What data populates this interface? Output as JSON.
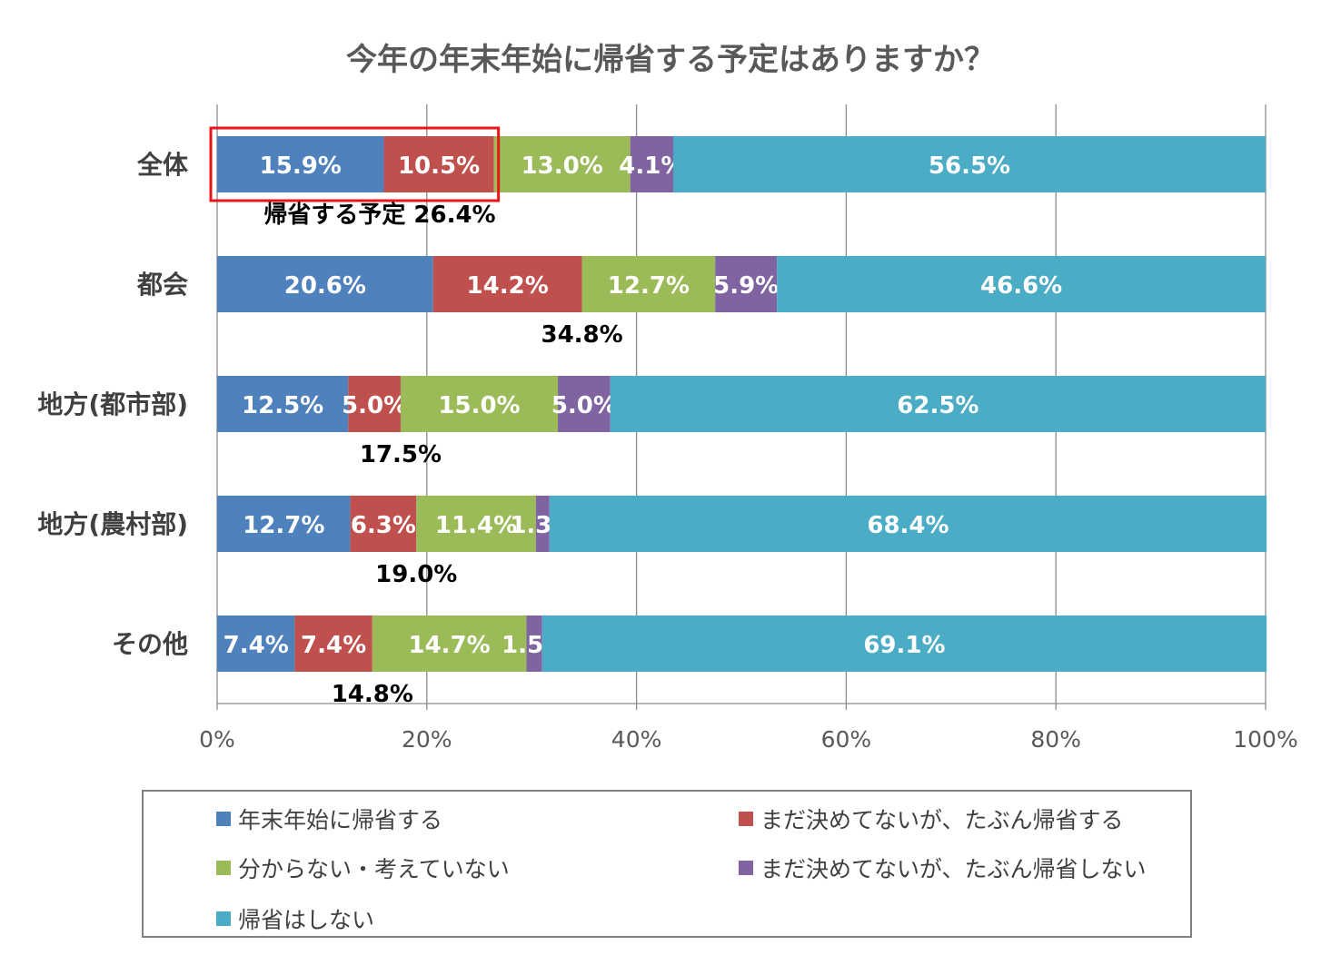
{
  "title": "今年の年末年始に帰省する予定はありますか？",
  "colors": [
    "#4F81BD",
    "#C0504D",
    "#9BBB59",
    "#8064A2",
    "#4BACC6"
  ],
  "chart_data": {
    "type": "bar",
    "orientation": "horizontal",
    "stacked": true,
    "title": "今年の年末年始に帰省する予定はありますか？",
    "categories": [
      "全体",
      "都会",
      "地方(都市部)",
      "地方(農村部)",
      "その他"
    ],
    "series": [
      {
        "name": "年末年始に帰省する",
        "values": [
          15.9,
          20.6,
          12.5,
          12.7,
          7.4
        ]
      },
      {
        "name": "まだ決めてないが、たぶん帰省する",
        "values": [
          10.5,
          14.2,
          5.0,
          6.3,
          7.4
        ]
      },
      {
        "name": "分からない・考えていない",
        "values": [
          13.0,
          12.7,
          15.0,
          11.4,
          14.7
        ]
      },
      {
        "name": "まだ決めてないが、たぶん帰省しない",
        "values": [
          4.1,
          5.9,
          5.0,
          1.3,
          1.5
        ]
      },
      {
        "name": "帰省はしない",
        "values": [
          56.5,
          46.6,
          62.5,
          68.4,
          69.1
        ]
      }
    ],
    "labels": [
      [
        "15.9%",
        "10.5%",
        "13.0%",
        "4.1%",
        "56.5%"
      ],
      [
        "20.6%",
        "14.2%",
        "12.7%",
        "5.9%",
        "46.6%"
      ],
      [
        "12.5%",
        "5.0%",
        "15.0%",
        "5.0%",
        "62.5%"
      ],
      [
        "12.7%",
        "6.3%",
        "11.4%",
        "1.3%",
        "68.4%"
      ],
      [
        "7.4%",
        "7.4%",
        "14.7%",
        "1.5%",
        "69.1%"
      ]
    ],
    "sum_annotations": [
      "帰省する予定 26.4%",
      "34.8%",
      "17.5%",
      "19.0%",
      "14.8%"
    ],
    "sum_values": [
      26.4,
      34.8,
      17.5,
      19.0,
      14.8
    ],
    "highlight_row": 0,
    "xlim": [
      0,
      100
    ],
    "xticks": [
      0,
      20,
      40,
      60,
      80,
      100
    ],
    "xtick_labels": [
      "0%",
      "20%",
      "40%",
      "60%",
      "80%",
      "100%"
    ],
    "grid": true,
    "legend_position": "bottom"
  }
}
